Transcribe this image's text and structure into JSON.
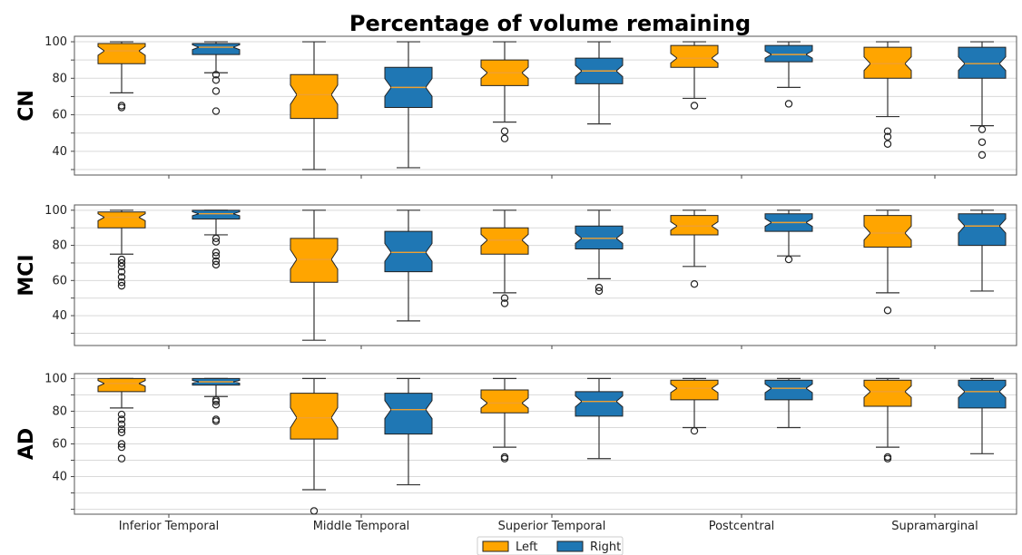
{
  "chart_data": {
    "type": "boxplot",
    "title": "Percentage of volume remaining",
    "categories": [
      "Inferior Temporal",
      "Middle Temporal",
      "Superior Temporal",
      "Postcentral",
      "Supramarginal"
    ],
    "legend": {
      "placement": "bottom-center",
      "entries": [
        "Left",
        "Right"
      ]
    },
    "series_colors": {
      "Left": "#FFA500",
      "Right": "#1F77B4"
    },
    "median_color": "#F0A030",
    "grid": true,
    "ylim": [
      25,
      102
    ],
    "panels": [
      {
        "label": "CN",
        "yticks": [
          40,
          60,
          80,
          100
        ],
        "ylim": [
          27,
          103
        ],
        "boxes": [
          {
            "category": "Inferior Temporal",
            "side": "Left",
            "whislo": 72,
            "q1": 88,
            "med": 95,
            "q3": 99,
            "whishi": 100,
            "fliers": [
              64,
              65
            ]
          },
          {
            "category": "Inferior Temporal",
            "side": "Right",
            "whislo": 83,
            "q1": 93,
            "med": 97,
            "q3": 99,
            "whishi": 100,
            "fliers": [
              62,
              73,
              79,
              82
            ]
          },
          {
            "category": "Middle Temporal",
            "side": "Left",
            "whislo": 30,
            "q1": 58,
            "med": 71,
            "q3": 82,
            "whishi": 100,
            "fliers": []
          },
          {
            "category": "Middle Temporal",
            "side": "Right",
            "whislo": 31,
            "q1": 64,
            "med": 75,
            "q3": 86,
            "whishi": 100,
            "fliers": []
          },
          {
            "category": "Superior Temporal",
            "side": "Left",
            "whislo": 56,
            "q1": 76,
            "med": 83,
            "q3": 90,
            "whishi": 100,
            "fliers": [
              47,
              51
            ]
          },
          {
            "category": "Superior Temporal",
            "side": "Right",
            "whislo": 55,
            "q1": 77,
            "med": 84,
            "q3": 91,
            "whishi": 100,
            "fliers": []
          },
          {
            "category": "Postcentral",
            "side": "Left",
            "whislo": 69,
            "q1": 86,
            "med": 91,
            "q3": 98,
            "whishi": 100,
            "fliers": [
              65
            ]
          },
          {
            "category": "Postcentral",
            "side": "Right",
            "whislo": 75,
            "q1": 89,
            "med": 93,
            "q3": 98,
            "whishi": 100,
            "fliers": [
              66
            ]
          },
          {
            "category": "Supramarginal",
            "side": "Left",
            "whislo": 59,
            "q1": 80,
            "med": 88,
            "q3": 97,
            "whishi": 100,
            "fliers": [
              44,
              48,
              51
            ]
          },
          {
            "category": "Supramarginal",
            "side": "Right",
            "whislo": 54,
            "q1": 80,
            "med": 88,
            "q3": 97,
            "whishi": 100,
            "fliers": [
              38,
              45,
              52
            ]
          }
        ]
      },
      {
        "label": "MCI",
        "yticks": [
          40,
          60,
          80,
          100
        ],
        "ylim": [
          23,
          103
        ],
        "boxes": [
          {
            "category": "Inferior Temporal",
            "side": "Left",
            "whislo": 75,
            "q1": 90,
            "med": 96,
            "q3": 99,
            "whishi": 100,
            "fliers": [
              57,
              59,
              62,
              65,
              68,
              70,
              72
            ]
          },
          {
            "category": "Inferior Temporal",
            "side": "Right",
            "whislo": 86,
            "q1": 95,
            "med": 98,
            "q3": 100,
            "whishi": 100,
            "fliers": [
              69,
              71,
              74,
              76,
              82,
              84
            ]
          },
          {
            "category": "Middle Temporal",
            "side": "Left",
            "whislo": 26,
            "q1": 59,
            "med": 72,
            "q3": 84,
            "whishi": 100,
            "fliers": []
          },
          {
            "category": "Middle Temporal",
            "side": "Right",
            "whislo": 37,
            "q1": 65,
            "med": 76,
            "q3": 88,
            "whishi": 100,
            "fliers": []
          },
          {
            "category": "Superior Temporal",
            "side": "Left",
            "whislo": 53,
            "q1": 75,
            "med": 83,
            "q3": 90,
            "whishi": 100,
            "fliers": [
              47,
              50
            ]
          },
          {
            "category": "Superior Temporal",
            "side": "Right",
            "whislo": 61,
            "q1": 78,
            "med": 84,
            "q3": 91,
            "whishi": 100,
            "fliers": [
              54,
              56
            ]
          },
          {
            "category": "Postcentral",
            "side": "Left",
            "whislo": 68,
            "q1": 86,
            "med": 91,
            "q3": 97,
            "whishi": 100,
            "fliers": [
              58
            ]
          },
          {
            "category": "Postcentral",
            "side": "Right",
            "whislo": 74,
            "q1": 88,
            "med": 93,
            "q3": 98,
            "whishi": 100,
            "fliers": [
              72
            ]
          },
          {
            "category": "Supramarginal",
            "side": "Left",
            "whislo": 53,
            "q1": 79,
            "med": 87,
            "q3": 97,
            "whishi": 100,
            "fliers": [
              43
            ]
          },
          {
            "category": "Supramarginal",
            "side": "Right",
            "whislo": 54,
            "q1": 80,
            "med": 91,
            "q3": 98,
            "whishi": 100,
            "fliers": []
          }
        ]
      },
      {
        "label": "AD",
        "yticks": [
          40,
          60,
          80,
          100
        ],
        "ylim": [
          17,
          103
        ],
        "boxes": [
          {
            "category": "Inferior Temporal",
            "side": "Left",
            "whislo": 82,
            "q1": 92,
            "med": 97,
            "q3": 100,
            "whishi": 100,
            "fliers": [
              51,
              58,
              60,
              67,
              69,
              72,
              75,
              78
            ]
          },
          {
            "category": "Inferior Temporal",
            "side": "Right",
            "whislo": 89,
            "q1": 96,
            "med": 98,
            "q3": 100,
            "whishi": 100,
            "fliers": [
              74,
              75,
              84,
              86,
              87
            ]
          },
          {
            "category": "Middle Temporal",
            "side": "Left",
            "whislo": 32,
            "q1": 63,
            "med": 76,
            "q3": 91,
            "whishi": 100,
            "fliers": [
              19
            ]
          },
          {
            "category": "Middle Temporal",
            "side": "Right",
            "whislo": 35,
            "q1": 66,
            "med": 81,
            "q3": 91,
            "whishi": 100,
            "fliers": []
          },
          {
            "category": "Superior Temporal",
            "side": "Left",
            "whislo": 58,
            "q1": 79,
            "med": 85,
            "q3": 93,
            "whishi": 100,
            "fliers": [
              51,
              52
            ]
          },
          {
            "category": "Superior Temporal",
            "side": "Right",
            "whislo": 51,
            "q1": 77,
            "med": 86,
            "q3": 92,
            "whishi": 100,
            "fliers": []
          },
          {
            "category": "Postcentral",
            "side": "Left",
            "whislo": 70,
            "q1": 87,
            "med": 94,
            "q3": 99,
            "whishi": 100,
            "fliers": [
              68
            ]
          },
          {
            "category": "Postcentral",
            "side": "Right",
            "whislo": 70,
            "q1": 87,
            "med": 94,
            "q3": 99,
            "whishi": 100,
            "fliers": []
          },
          {
            "category": "Supramarginal",
            "side": "Left",
            "whislo": 58,
            "q1": 83,
            "med": 92,
            "q3": 99,
            "whishi": 100,
            "fliers": [
              51,
              52
            ]
          },
          {
            "category": "Supramarginal",
            "side": "Right",
            "whislo": 54,
            "q1": 82,
            "med": 92,
            "q3": 99,
            "whishi": 100,
            "fliers": []
          }
        ]
      }
    ]
  }
}
